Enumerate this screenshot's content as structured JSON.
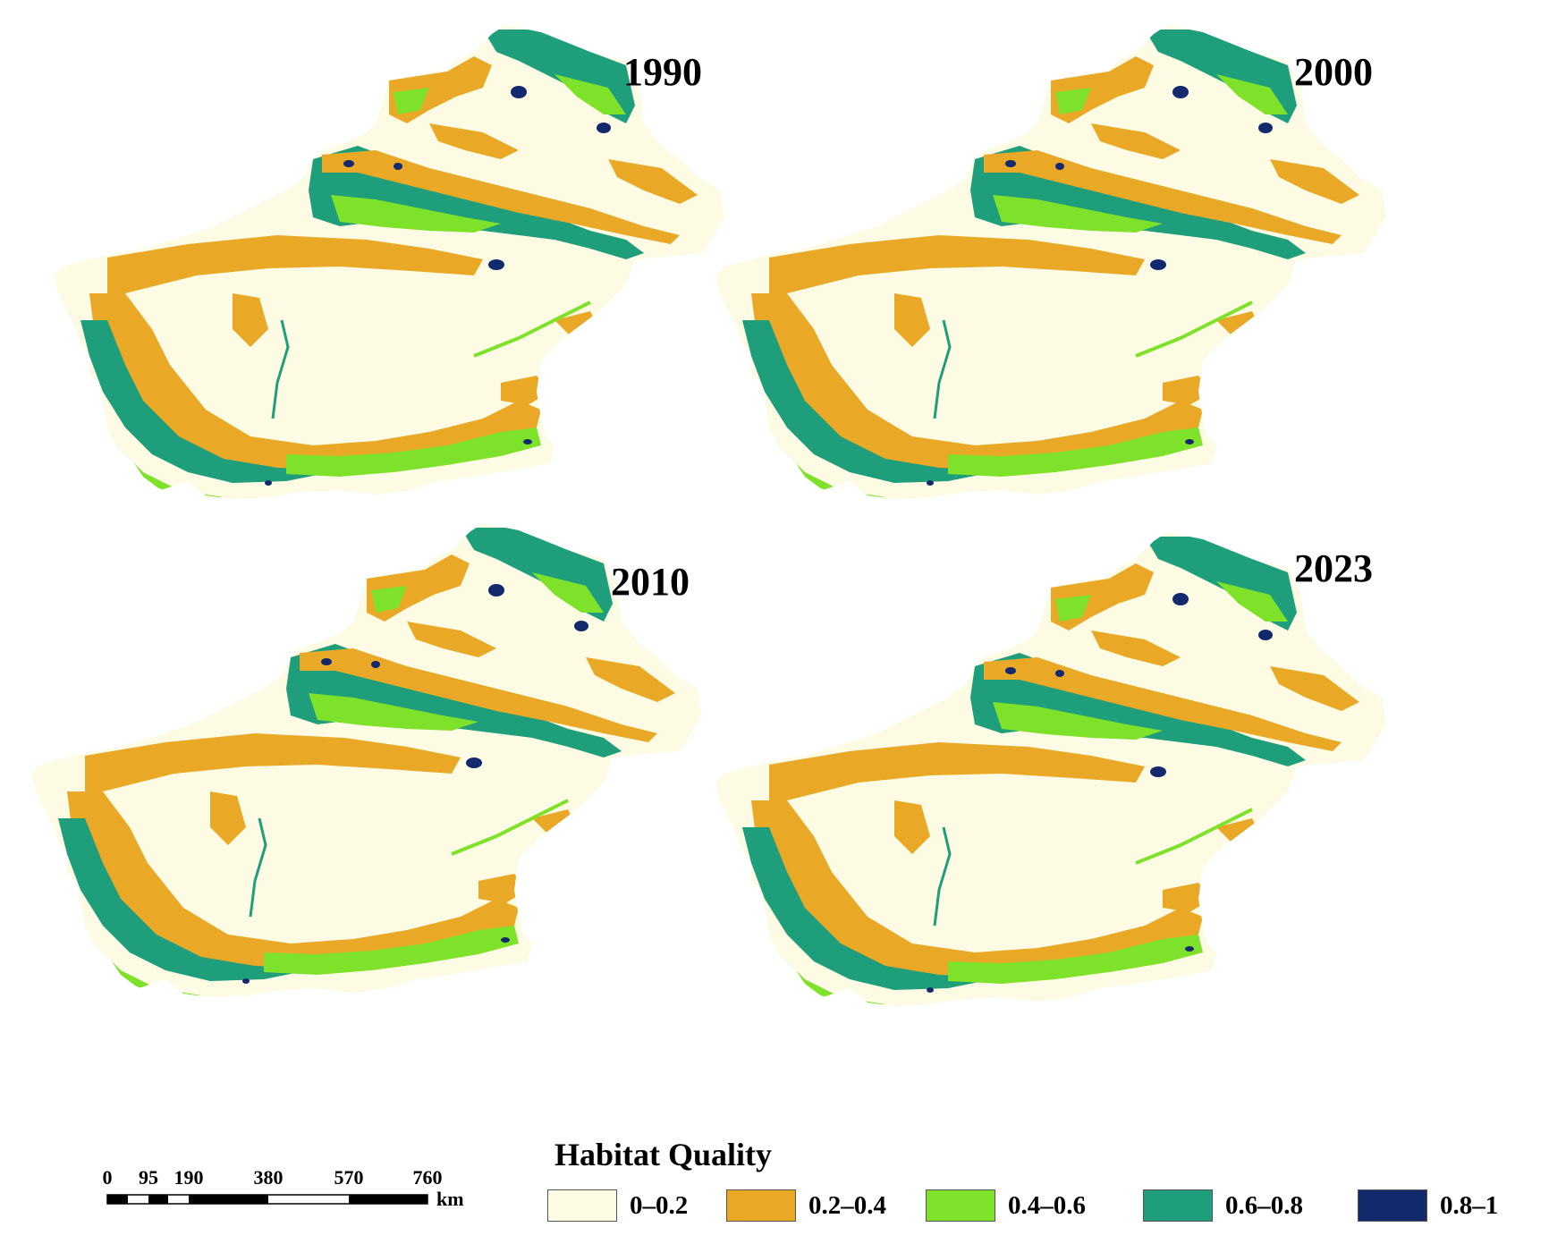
{
  "maps": [
    {
      "year": "1990"
    },
    {
      "year": "2000"
    },
    {
      "year": "2010"
    },
    {
      "year": "2023"
    }
  ],
  "legend": {
    "title": "Habitat Quality",
    "items": [
      {
        "label": "0–0.2",
        "color": "#fdfbe3"
      },
      {
        "label": "0.2–0.4",
        "color": "#eaa827"
      },
      {
        "label": "0.4–0.6",
        "color": "#7ee22a"
      },
      {
        "label": "0.6–0.8",
        "color": "#1f9e7c"
      },
      {
        "label": "0.8–1",
        "color": "#13296e"
      }
    ]
  },
  "scale_bar": {
    "ticks": [
      "0",
      "95",
      "190",
      "380",
      "570",
      "760"
    ],
    "unit": "km"
  }
}
